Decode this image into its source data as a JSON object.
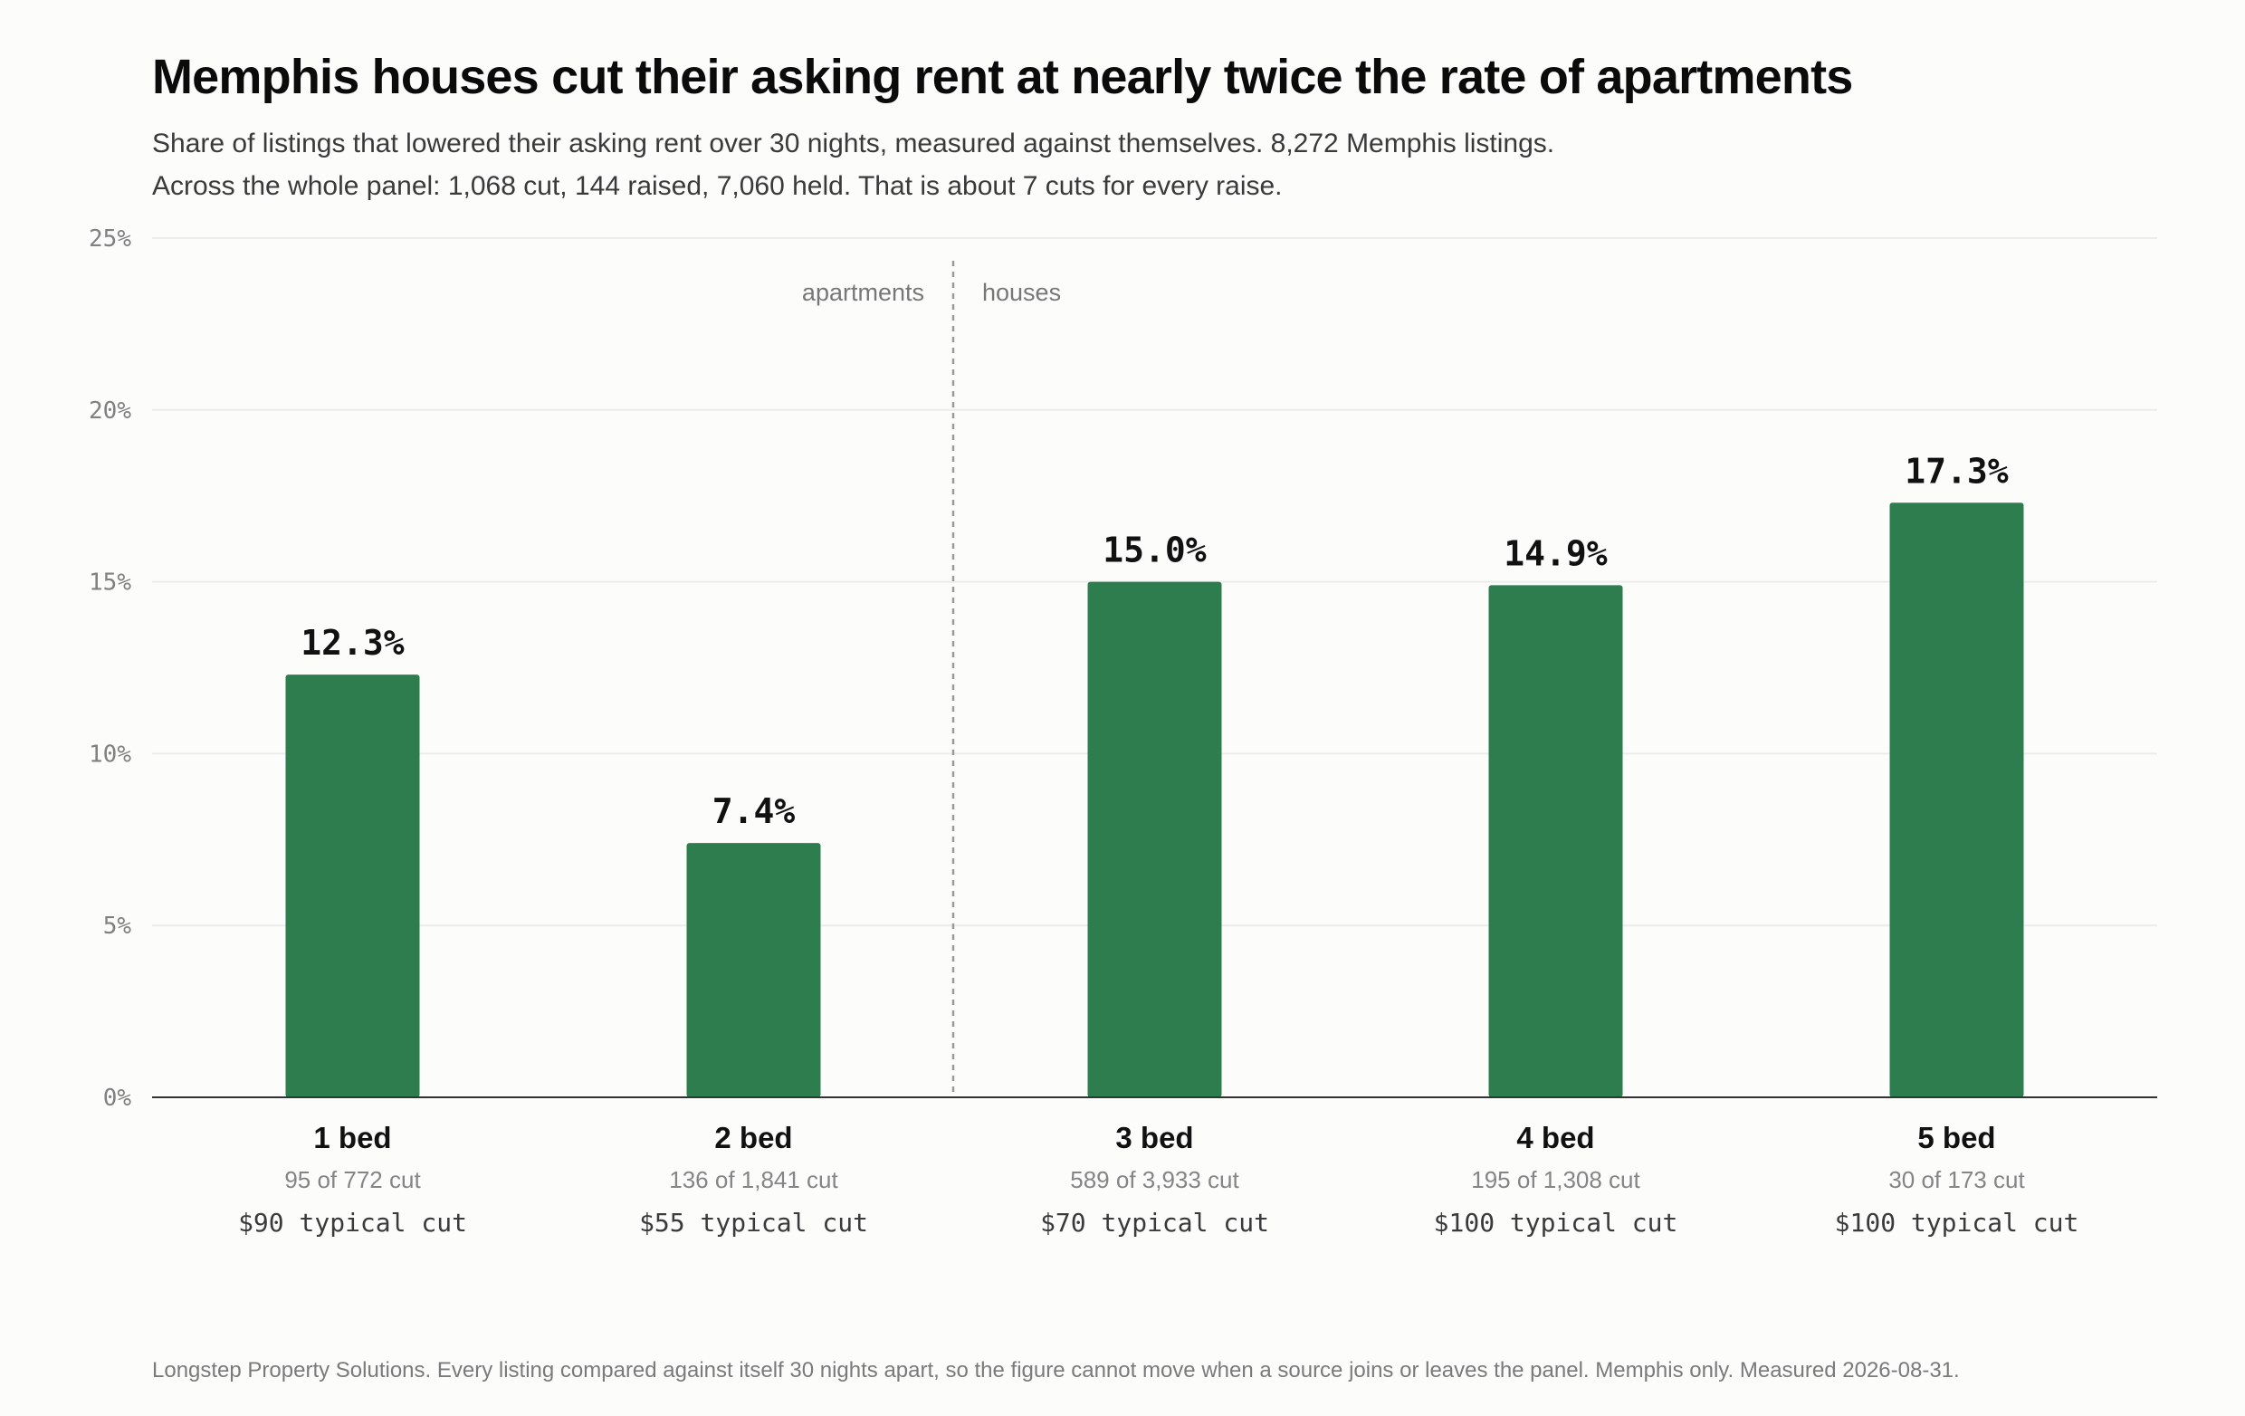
{
  "title": "Memphis houses cut their asking rent at nearly twice the rate of apartments",
  "subtitle_lines": [
    "Share of listings that lowered their asking rent over 30 nights, measured against themselves. 8,272 Memphis listings.",
    "Across the whole panel: 1,068 cut, 144 raised, 7,060 held. That is about 7 cuts for every raise."
  ],
  "footer": "Longstep Property Solutions. Every listing compared against itself 30 nights apart, so the figure cannot move when a source joins or leaves the panel. Memphis only. Measured 2026-08-31.",
  "chart_data": {
    "type": "bar",
    "categories": [
      "1 bed",
      "2 bed",
      "3 bed",
      "4 bed",
      "5 bed"
    ],
    "values": [
      12.3,
      7.4,
      15.0,
      14.9,
      17.3
    ],
    "value_labels": [
      "12.3%",
      "7.4%",
      "15.0%",
      "14.9%",
      "17.3%"
    ],
    "counts": [
      "95 of 772 cut",
      "136 of 1,841 cut",
      "589 of 3,933 cut",
      "195 of 1,308 cut",
      "30 of 173 cut"
    ],
    "typical_cuts": [
      "$90 typical cut",
      "$55 typical cut",
      "$70 typical cut",
      "$100 typical cut",
      "$100 typical cut"
    ],
    "groups": [
      {
        "label": "apartments",
        "categories": [
          "1 bed",
          "2 bed"
        ]
      },
      {
        "label": "houses",
        "categories": [
          "3 bed",
          "4 bed",
          "5 bed"
        ]
      }
    ],
    "ylim": [
      0,
      25
    ],
    "yticks": [
      0,
      5,
      10,
      15,
      20,
      25
    ],
    "ytick_labels": [
      "0%",
      "5%",
      "10%",
      "15%",
      "20%",
      "25%"
    ],
    "xlabel": "",
    "ylabel": "",
    "grid": true,
    "bar_color": "#2e7d4f"
  }
}
